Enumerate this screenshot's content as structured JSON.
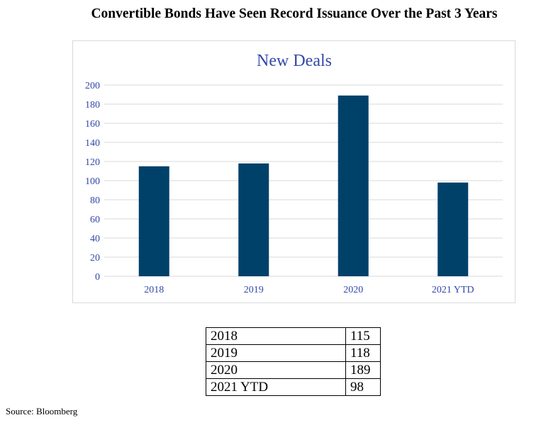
{
  "page": {
    "title": "Convertible Bonds Have Seen Record Issuance Over the Past 3 Years",
    "source": "Source: Bloomberg"
  },
  "colors": {
    "bar": "#00416a",
    "title": "#3348a8",
    "axis_text": "#3348a8",
    "grid": "#d9d9d9"
  },
  "chart_data": {
    "type": "bar",
    "title": "New Deals",
    "categories": [
      "2018",
      "2019",
      "2020",
      "2021 YTD"
    ],
    "values": [
      115,
      118,
      189,
      98
    ],
    "xlabel": "",
    "ylabel": "",
    "ylim": [
      0,
      200
    ],
    "yticks": [
      0,
      20,
      40,
      60,
      80,
      100,
      120,
      140,
      160,
      180,
      200
    ],
    "grid": true,
    "legend": "none"
  },
  "table": {
    "rows": [
      {
        "label": "2018",
        "value": "115"
      },
      {
        "label": "2019",
        "value": "118"
      },
      {
        "label": "2020",
        "value": "189"
      },
      {
        "label": "2021 YTD",
        "value": "98"
      }
    ]
  }
}
